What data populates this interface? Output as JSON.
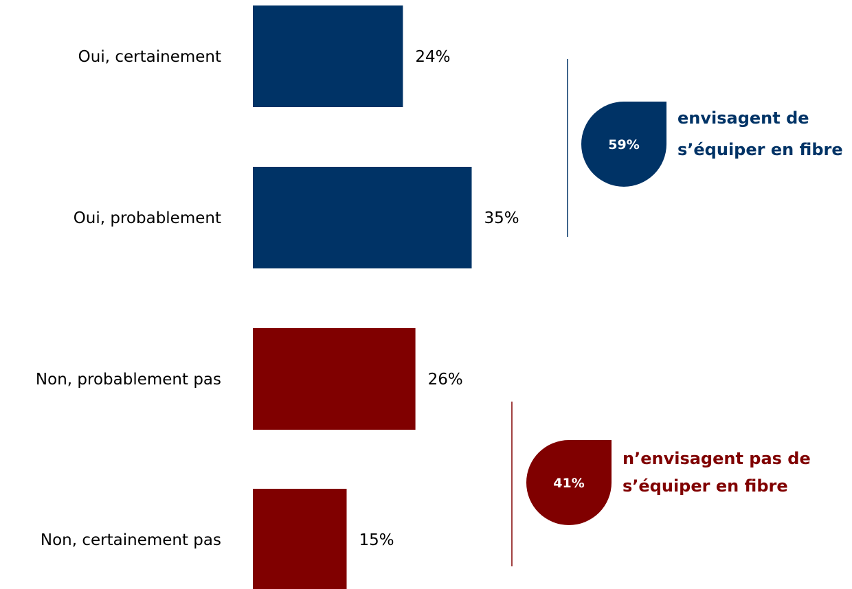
{
  "colors": {
    "positive": "#003366",
    "negative": "#800000"
  },
  "chart_data": {
    "type": "bar",
    "orientation": "horizontal",
    "categories": [
      "Oui, certainement",
      "Oui, probablement",
      "Non, probablement pas",
      "Non, certainement pas"
    ],
    "values": [
      24,
      35,
      26,
      15
    ],
    "value_labels": [
      "24%",
      "35%",
      "26%",
      "15%"
    ],
    "bar_colors": [
      "#003366",
      "#003366",
      "#800000",
      "#800000"
    ],
    "unit": "%",
    "xlim": [
      0,
      100
    ],
    "title": "",
    "xlabel": "",
    "ylabel": "",
    "grid": false,
    "annotations": [
      {
        "id": "oui",
        "groups": [
          0,
          1
        ],
        "value": 59,
        "badge": "59%",
        "color": "#003366",
        "lines": [
          "envisagent de",
          "s’équiper en fibre"
        ]
      },
      {
        "id": "non",
        "groups": [
          2,
          3
        ],
        "value": 41,
        "badge": "41%",
        "color": "#800000",
        "lines": [
          "n’envisagent pas de",
          "s’équiper en fibre"
        ]
      }
    ]
  }
}
